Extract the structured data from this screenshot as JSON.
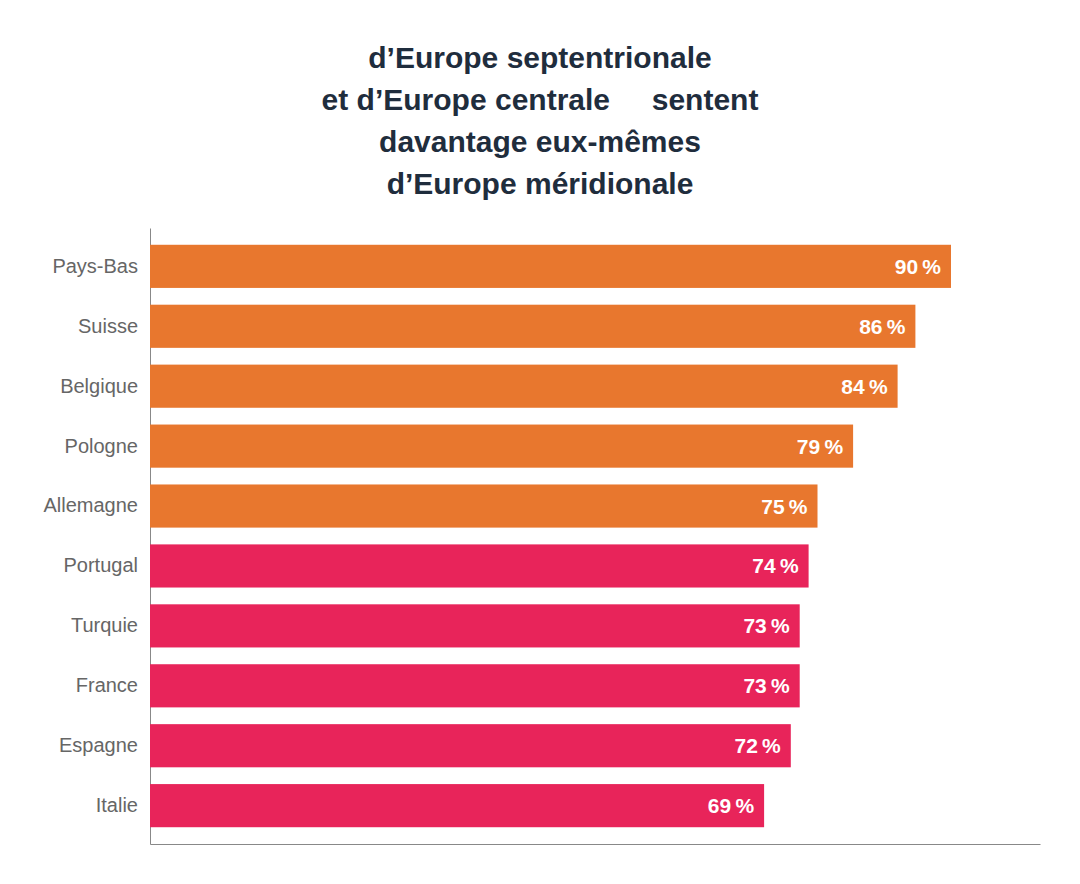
{
  "chart_data": {
    "type": "bar",
    "orientation": "horizontal",
    "title": [
      "d’Europe septentrionale",
      "et d’Europe centrale     sentent",
      "davantage eux-mêmes",
      "d’Europe méridionale"
    ],
    "categories": [
      "Pays-Bas",
      "Suisse",
      "Belgique",
      "Pologne",
      "Allemagne",
      "Portugal",
      "Turquie",
      "France",
      "Espagne",
      "Italie"
    ],
    "values": [
      90,
      86,
      84,
      79,
      75,
      74,
      73,
      73,
      72,
      69
    ],
    "value_labels": [
      "90 %",
      "86 %",
      "84 %",
      "79 %",
      "75 %",
      "74 %",
      "73 %",
      "73 %",
      "72 %",
      "69 %"
    ],
    "colors": [
      "#E8772E",
      "#E8772E",
      "#E8772E",
      "#E8772E",
      "#E8772E",
      "#E8245A",
      "#E8245A",
      "#E8245A",
      "#E8245A",
      "#E8245A"
    ],
    "xlim": [
      0,
      100
    ],
    "data_labels": true,
    "tick_labels": "y",
    "grid": false
  }
}
